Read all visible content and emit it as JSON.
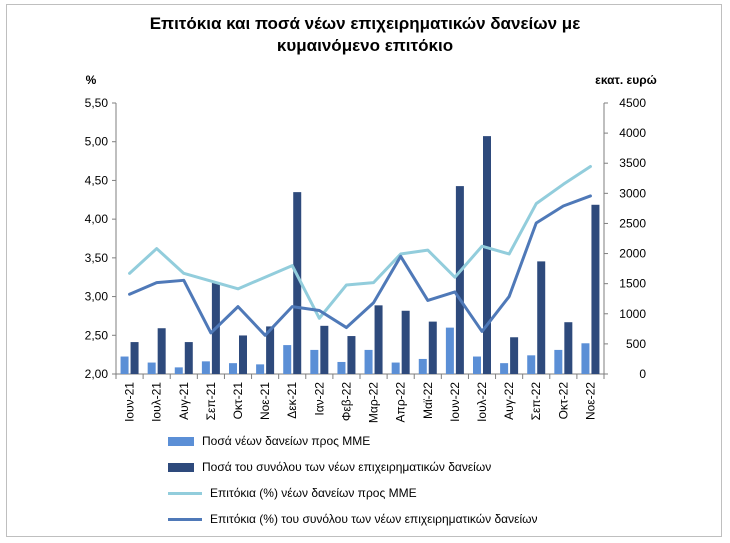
{
  "title": "Επιτόκια και ποσά νέων επιχειρηματικών δανείων με\nκυμαινόμενο επιτόκιο",
  "chart_data": {
    "type": "bar",
    "title": "Επιτόκια και ποσά νέων επιχειρηματικών δανείων με κυμαινόμενο επιτόκιο",
    "categories": [
      "Ιουν-21",
      "Ιουλ-21",
      "Αυγ-21",
      "Σεπ-21",
      "Οκτ-21",
      "Νοε-21",
      "Δεκ-21",
      "Ιαν-22",
      "Φεβ-22",
      "Μαρ-22",
      "Απρ-22",
      "Μαϊ-22",
      "Ιουν-22",
      "Ιουλ-22",
      "Αυγ-22",
      "Σεπ-22",
      "Οκτ-22",
      "Νοε-22"
    ],
    "y_left": {
      "unit_label": "%",
      "ylim": [
        2.0,
        5.5
      ],
      "ticks": [
        "2,00",
        "2,50",
        "3,00",
        "3,50",
        "4,00",
        "4,50",
        "5,00",
        "5,50"
      ]
    },
    "y_right": {
      "unit_label": "εκατ. ευρώ",
      "ylim": [
        0,
        4500
      ],
      "ticks": [
        "0",
        "500",
        "1000",
        "1500",
        "2000",
        "2500",
        "3000",
        "3500",
        "4000",
        "4500"
      ]
    },
    "series": [
      {
        "name": "Ποσά νέων δανείων προς ΜΜΕ",
        "kind": "bar",
        "axis": "right",
        "color": "#5b8fd6",
        "values": [
          290,
          190,
          110,
          210,
          180,
          160,
          480,
          400,
          200,
          400,
          190,
          250,
          770,
          290,
          180,
          310,
          400,
          510
        ]
      },
      {
        "name": "Ποσά του συνόλου των νέων επιχειρηματικών δανείων",
        "kind": "bar",
        "axis": "right",
        "color": "#2e4a7c",
        "values": [
          530,
          760,
          530,
          1510,
          640,
          790,
          3020,
          800,
          630,
          1140,
          1050,
          870,
          3120,
          3950,
          610,
          1870,
          860,
          2810
        ]
      },
      {
        "name": "Επιτόκια (%) νέων δανείων προς ΜΜΕ",
        "kind": "line",
        "axis": "left",
        "color": "#92cddc",
        "values": [
          3.3,
          3.62,
          3.3,
          3.2,
          3.1,
          3.25,
          3.4,
          2.72,
          3.15,
          3.18,
          3.55,
          3.6,
          3.25,
          3.65,
          3.55,
          4.2,
          4.45,
          4.68
        ]
      },
      {
        "name": "Επιτόκια (%) του συνόλου των νέων επιχειρηματικών δανείων",
        "kind": "line",
        "axis": "left",
        "color": "#4f79b8",
        "values": [
          3.03,
          3.18,
          3.21,
          2.53,
          2.87,
          2.5,
          2.87,
          2.82,
          2.6,
          2.92,
          3.52,
          2.95,
          3.06,
          2.55,
          3.0,
          3.95,
          4.17,
          4.3
        ]
      }
    ],
    "grid": false,
    "legend_position": "bottom"
  }
}
